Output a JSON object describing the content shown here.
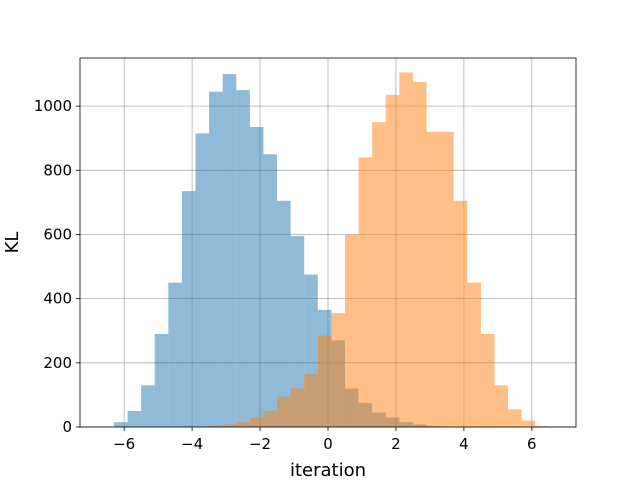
{
  "chart_data": {
    "type": "bar",
    "subtype": "overlapping-histogram",
    "title": "",
    "xlabel": "iteration",
    "ylabel": "KL",
    "xlim": [
      -7.3,
      7.3
    ],
    "ylim": [
      0,
      1150
    ],
    "xticks": [
      -6,
      -4,
      -2,
      0,
      2,
      4,
      6
    ],
    "yticks": [
      0,
      200,
      400,
      600,
      800,
      1000
    ],
    "grid": true,
    "bin_width": 0.4,
    "series": [
      {
        "color": "#1f77b4",
        "opacity": 0.5,
        "bins_start": [
          -6.3,
          -5.9,
          -5.5,
          -5.1,
          -4.7,
          -4.3,
          -3.9,
          -3.5,
          -3.1,
          -2.7,
          -2.3,
          -1.9,
          -1.5,
          -1.1,
          -0.7,
          -0.3,
          0.1,
          0.5,
          0.9,
          1.3,
          1.7,
          2.1,
          2.5,
          2.9
        ],
        "values": [
          15,
          50,
          130,
          290,
          450,
          735,
          915,
          1045,
          1100,
          1050,
          935,
          850,
          705,
          595,
          475,
          365,
          270,
          120,
          75,
          45,
          30,
          15,
          8,
          3
        ]
      },
      {
        "color": "#ff7f0e",
        "opacity": 0.5,
        "bins_start": [
          -3.5,
          -3.1,
          -2.7,
          -2.3,
          -1.9,
          -1.5,
          -1.1,
          -0.7,
          -0.3,
          0.1,
          0.5,
          0.9,
          1.3,
          1.7,
          2.1,
          2.5,
          2.9,
          3.3,
          3.7,
          4.1,
          4.5,
          4.9,
          5.3,
          5.7,
          6.1
        ],
        "values": [
          3,
          8,
          15,
          30,
          50,
          95,
          120,
          165,
          285,
          355,
          600,
          840,
          950,
          1035,
          1105,
          1075,
          920,
          920,
          705,
          450,
          290,
          130,
          55,
          20,
          3
        ]
      }
    ]
  }
}
